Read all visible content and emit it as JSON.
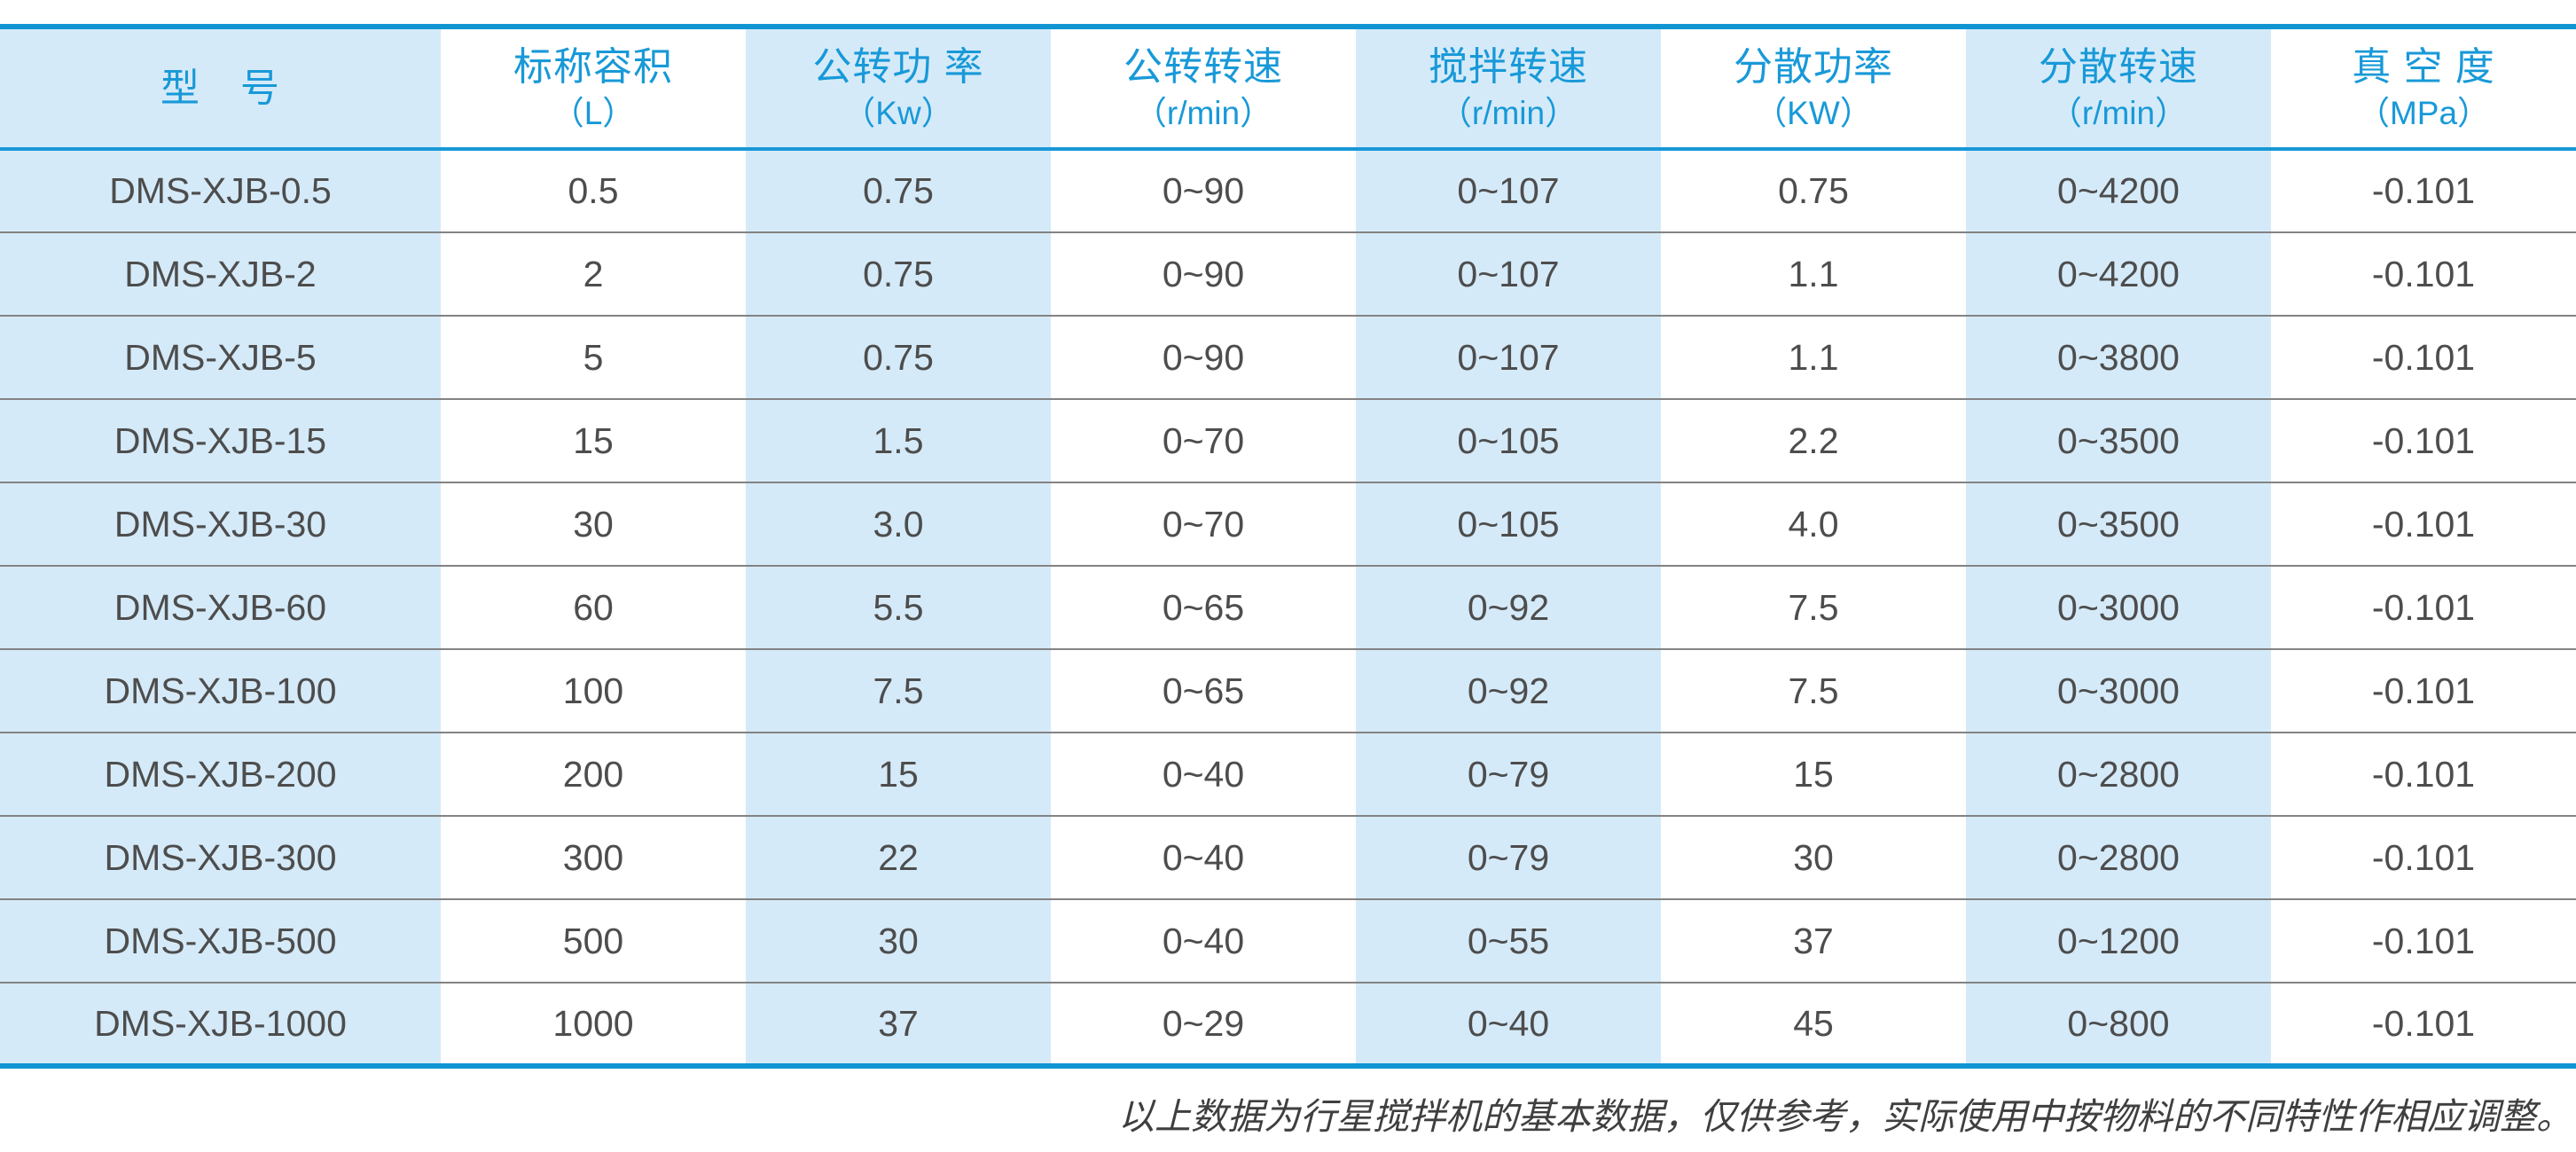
{
  "table": {
    "columns": [
      {
        "title": "型　号",
        "unit": ""
      },
      {
        "title": "标称容积",
        "unit": "（L）"
      },
      {
        "title": "公转功 率",
        "unit": "（Kw）"
      },
      {
        "title": "公转转速",
        "unit": "（r/min）"
      },
      {
        "title": "搅拌转速",
        "unit": "（r/min）"
      },
      {
        "title": "分散功率",
        "unit": "（KW）"
      },
      {
        "title": "分散转速",
        "unit": "（r/min）"
      },
      {
        "title": "真 空 度",
        "unit": "（MPa）"
      }
    ],
    "rows": [
      {
        "cells": [
          "DMS-XJB-0.5",
          "0.5",
          "0.75",
          "0~90",
          "0~107",
          "0.75",
          "0~4200",
          "-0.101"
        ]
      },
      {
        "cells": [
          "DMS-XJB-2",
          "2",
          "0.75",
          "0~90",
          "0~107",
          "1.1",
          "0~4200",
          "-0.101"
        ]
      },
      {
        "cells": [
          "DMS-XJB-5",
          "5",
          "0.75",
          "0~90",
          "0~107",
          "1.1",
          "0~3800",
          "-0.101"
        ]
      },
      {
        "cells": [
          "DMS-XJB-15",
          "15",
          "1.5",
          "0~70",
          "0~105",
          "2.2",
          "0~3500",
          "-0.101"
        ]
      },
      {
        "cells": [
          "DMS-XJB-30",
          "30",
          "3.0",
          "0~70",
          "0~105",
          "4.0",
          "0~3500",
          "-0.101"
        ]
      },
      {
        "cells": [
          "DMS-XJB-60",
          "60",
          "5.5",
          "0~65",
          "0~92",
          "7.5",
          "0~3000",
          "-0.101"
        ]
      },
      {
        "cells": [
          "DMS-XJB-100",
          "100",
          "7.5",
          "0~65",
          "0~92",
          "7.5",
          "0~3000",
          "-0.101"
        ]
      },
      {
        "cells": [
          "DMS-XJB-200",
          "200",
          "15",
          "0~40",
          "0~79",
          "15",
          "0~2800",
          "-0.101"
        ]
      },
      {
        "cells": [
          "DMS-XJB-300",
          "300",
          "22",
          "0~40",
          "0~79",
          "30",
          "0~2800",
          "-0.101"
        ]
      },
      {
        "cells": [
          "DMS-XJB-500",
          "500",
          "30",
          "0~40",
          "0~55",
          "37",
          "0~1200",
          "-0.101"
        ]
      },
      {
        "cells": [
          "DMS-XJB-1000",
          "1000",
          "37",
          "0~29",
          "0~40",
          "45",
          "0~800",
          "-0.101"
        ]
      }
    ]
  },
  "footer": {
    "note": "以上数据为行星搅拌机的基本数据，仅供参考，实际使用中按物料的不同特性作相应调整。"
  },
  "colors": {
    "accent_blue_border": "#1095d3",
    "header_separator_blue": "#1898d6",
    "header_text_blue": "#1899d8",
    "shade_light_blue": "#d5eaf8",
    "body_text_gray": "#4d4d4d",
    "row_separator_gray": "#838383",
    "footnote_gray": "#3f3f3f"
  }
}
